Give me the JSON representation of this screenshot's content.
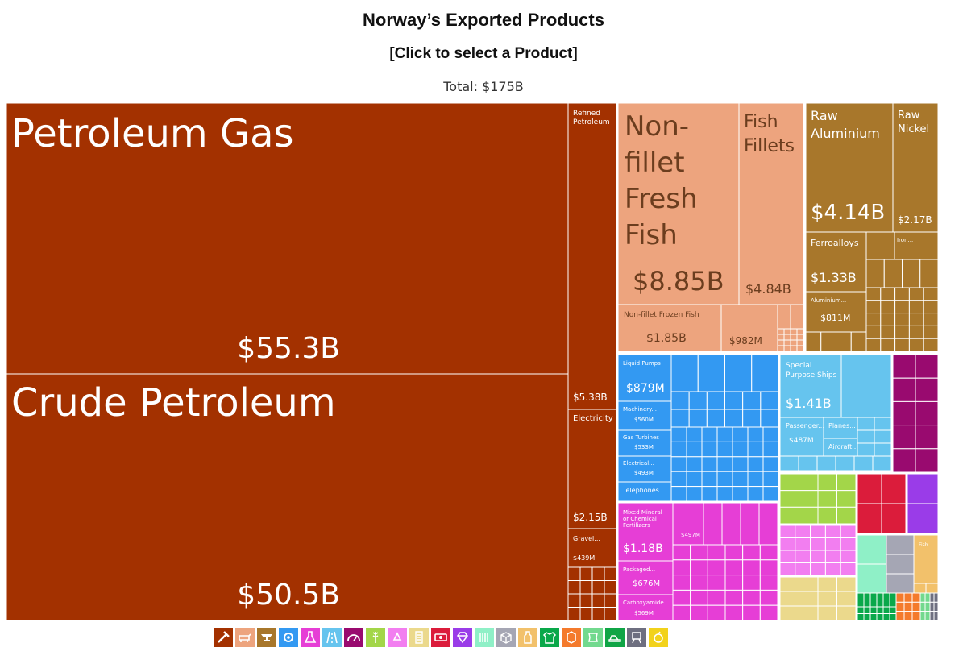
{
  "header": {
    "title": "Norway’s Exported Products",
    "subtitle": "[Click to select a Product]",
    "total": "Total: $175B"
  },
  "chart_data": {
    "type": "treemap",
    "title": "Norway’s Exported Products",
    "total": "$175B",
    "items": [
      {
        "name": "Petroleum Gas",
        "value": "$55.3B",
        "color": "#A33100"
      },
      {
        "name": "Crude Petroleum",
        "value": "$50.5B",
        "color": "#A33100"
      },
      {
        "name": "Refined Petroleum",
        "value": "$5.38B",
        "color": "#A33100"
      },
      {
        "name": "Electricity",
        "value": "$2.15B",
        "color": "#A33100"
      },
      {
        "name": "Gravel...",
        "value": "$439M",
        "color": "#A33100"
      },
      {
        "name": "Non-fillet Fresh Fish",
        "value": "$8.85B",
        "color": "#EDA47E"
      },
      {
        "name": "Fish Fillets",
        "value": "$4.84B",
        "color": "#EDA47E"
      },
      {
        "name": "Non-fillet Frozen Fish",
        "value": "$1.85B",
        "color": "#EDA47E"
      },
      {
        "name": "",
        "value": "$982M",
        "color": "#EDA47E"
      },
      {
        "name": "Raw Aluminium",
        "value": "$4.14B",
        "color": "#A8772B"
      },
      {
        "name": "Raw Nickel",
        "value": "$2.17B",
        "color": "#A8772B"
      },
      {
        "name": "Ferroalloys",
        "value": "$1.33B",
        "color": "#A8772B"
      },
      {
        "name": "Iron...",
        "value": "",
        "color": "#A8772B"
      },
      {
        "name": "Aluminium...",
        "value": "$811M",
        "color": "#A8772B"
      },
      {
        "name": "Liquid Pumps",
        "value": "$879M",
        "color": "#3399F2"
      },
      {
        "name": "Machinery...",
        "value": "$560M",
        "color": "#3399F2"
      },
      {
        "name": "Gas Turbines",
        "value": "$533M",
        "color": "#3399F2"
      },
      {
        "name": "Electrical...",
        "value": "$493M",
        "color": "#3399F2"
      },
      {
        "name": "Telephones",
        "value": "",
        "color": "#3399F2"
      },
      {
        "name": "Special Purpose Ships",
        "value": "$1.41B",
        "color": "#66C4EE"
      },
      {
        "name": "Passenger...",
        "value": "$487M",
        "color": "#66C4EE"
      },
      {
        "name": "Planes...",
        "value": "",
        "color": "#66C4EE"
      },
      {
        "name": "Aircraft...",
        "value": "",
        "color": "#66C4EE"
      },
      {
        "name": "Mixed Mineral or Chemical Fertilizers",
        "value": "$1.18B",
        "color": "#E63ED6"
      },
      {
        "name": "",
        "value": "$497M",
        "color": "#E63ED6"
      },
      {
        "name": "Packaged...",
        "value": "$676M",
        "color": "#E63ED6"
      },
      {
        "name": "Carboxyamide...",
        "value": "$569M",
        "color": "#E63ED6"
      },
      {
        "name": "Fish...",
        "value": "",
        "color": "#F0BE4A"
      }
    ],
    "legend": [
      {
        "name": "hammer-pick-icon",
        "color": "#A33100"
      },
      {
        "name": "cow-icon",
        "color": "#EDA47E"
      },
      {
        "name": "anvil-icon",
        "color": "#A8772B"
      },
      {
        "name": "gear-icon",
        "color": "#3399F2"
      },
      {
        "name": "flask-icon",
        "color": "#E63ED6"
      },
      {
        "name": "road-icon",
        "color": "#66C4EE"
      },
      {
        "name": "gauge-icon",
        "color": "#990A6F"
      },
      {
        "name": "wheat-icon",
        "color": "#A3D649"
      },
      {
        "name": "recycle-icon",
        "color": "#F27EF0"
      },
      {
        "name": "document-icon",
        "color": "#EBD98C"
      },
      {
        "name": "money-icon",
        "color": "#DB1C3B"
      },
      {
        "name": "gem-icon",
        "color": "#9A3CE8"
      },
      {
        "name": "fabric-icon",
        "color": "#8FF0C7"
      },
      {
        "name": "box-icon",
        "color": "#A5A6B4"
      },
      {
        "name": "bottle-icon",
        "color": "#F2C16B"
      },
      {
        "name": "shirt-icon",
        "color": "#0AA84A"
      },
      {
        "name": "leather-icon",
        "color": "#F47A2C"
      },
      {
        "name": "animal-hide-icon",
        "color": "#72D98E"
      },
      {
        "name": "shoe-icon",
        "color": "#10A546"
      },
      {
        "name": "easel-icon",
        "color": "#6E6F80"
      },
      {
        "name": "fruit-icon",
        "color": "#F2D21B"
      }
    ]
  }
}
